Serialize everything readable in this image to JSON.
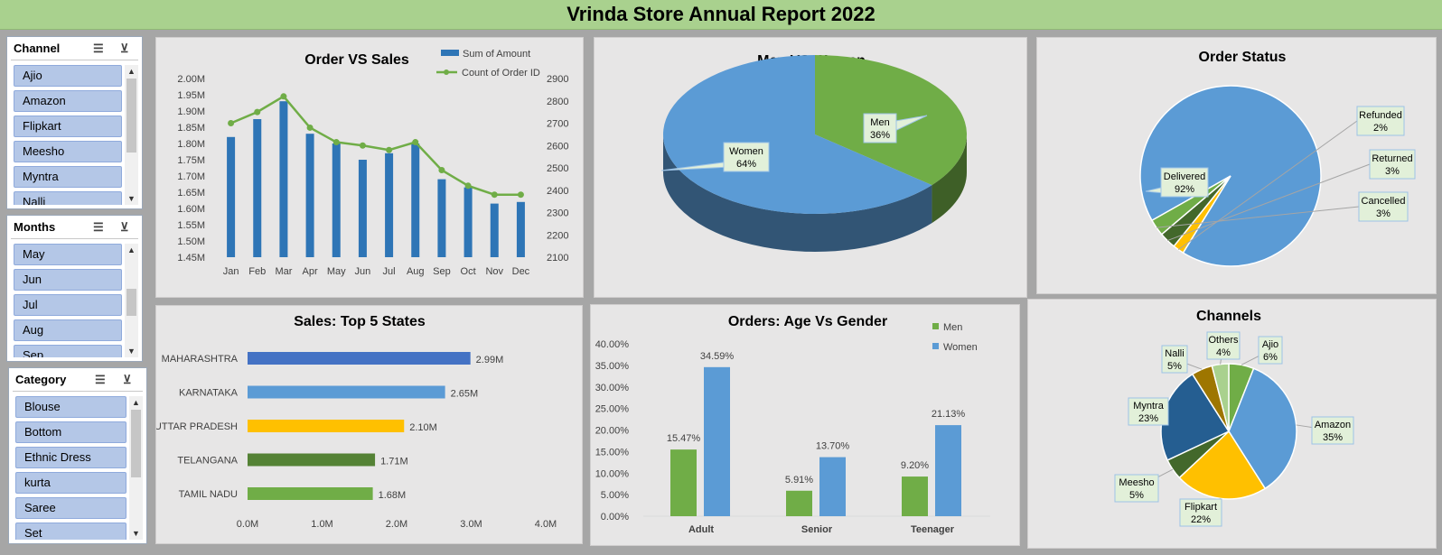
{
  "title": "Vrinda Store Annual Report 2022",
  "slicers": {
    "channel": {
      "label": "Channel",
      "items": [
        "Ajio",
        "Amazon",
        "Flipkart",
        "Meesho",
        "Myntra",
        "Nalli"
      ]
    },
    "months": {
      "label": "Months",
      "items": [
        "May",
        "Jun",
        "Jul",
        "Aug",
        "Sep"
      ]
    },
    "category": {
      "label": "Category",
      "items": [
        "Blouse",
        "Bottom",
        "Ethnic Dress",
        "kurta",
        "Saree",
        "Set"
      ]
    },
    "icons": {
      "multi_select": "multi-select-icon",
      "clear_filter": "clear-filter-icon",
      "scroll_up": "scroll-up-icon",
      "scroll_down": "scroll-down-icon"
    }
  },
  "chart_data": [
    {
      "id": "order_vs_sales",
      "type": "bar",
      "title": "Order VS Sales",
      "categories": [
        "Jan",
        "Feb",
        "Mar",
        "Apr",
        "May",
        "Jun",
        "Jul",
        "Aug",
        "Sep",
        "Oct",
        "Nov",
        "Dec"
      ],
      "series": [
        {
          "name": "Sum of Amount",
          "type": "bar",
          "axis": "left",
          "color": "#2e75b6",
          "values": [
            1.82,
            1.875,
            1.93,
            1.83,
            1.8,
            1.75,
            1.77,
            1.8,
            1.69,
            1.665,
            1.615,
            1.62
          ]
        },
        {
          "name": "Count of Order ID",
          "type": "line",
          "axis": "right",
          "color": "#70ad47",
          "values": [
            2700,
            2750,
            2820,
            2680,
            2615,
            2600,
            2580,
            2615,
            2490,
            2420,
            2380,
            2380
          ]
        }
      ],
      "y_left": {
        "range": [
          1.45,
          2.0
        ],
        "ticks": [
          "1.45M",
          "1.50M",
          "1.55M",
          "1.60M",
          "1.65M",
          "1.70M",
          "1.75M",
          "1.80M",
          "1.85M",
          "1.90M",
          "1.95M",
          "2.00M"
        ]
      },
      "y_right": {
        "range": [
          2100,
          2900
        ],
        "ticks": [
          "2100",
          "2200",
          "2300",
          "2400",
          "2500",
          "2600",
          "2700",
          "2800",
          "2900"
        ]
      },
      "legend": "top-right"
    },
    {
      "id": "men_vs_women",
      "type": "pie",
      "title": "Men VS Women",
      "slices": [
        {
          "name": "Men",
          "value": 36,
          "label": "36%",
          "color": "#70ad47"
        },
        {
          "name": "Women",
          "value": 64,
          "label": "64%",
          "color": "#5b9bd5"
        }
      ]
    },
    {
      "id": "order_status",
      "type": "pie",
      "title": "Order Status",
      "slices": [
        {
          "name": "Delivered",
          "value": 92,
          "label": "92%",
          "color": "#5b9bd5"
        },
        {
          "name": "Refunded",
          "value": 2,
          "label": "2%",
          "color": "#ffc000"
        },
        {
          "name": "Returned",
          "value": 3,
          "label": "3%",
          "color": "#43682b"
        },
        {
          "name": "Cancelled",
          "value": 3,
          "label": "3%",
          "color": "#70ad47"
        }
      ]
    },
    {
      "id": "top5_states",
      "type": "bar",
      "orientation": "horizontal",
      "title": "Sales: Top 5 States",
      "categories": [
        "MAHARASHTRA",
        "KARNATAKA",
        "UTTAR PRADESH",
        "TELANGANA",
        "TAMIL NADU"
      ],
      "values": [
        2.99,
        2.65,
        2.1,
        1.71,
        1.68
      ],
      "labels": [
        "2.99M",
        "2.65M",
        "2.10M",
        "1.71M",
        "1.68M"
      ],
      "colors": [
        "#4472c4",
        "#5b9bd5",
        "#ffc000",
        "#548235",
        "#70ad47"
      ],
      "x_ticks": [
        "0.0M",
        "1.0M",
        "2.0M",
        "3.0M",
        "4.0M"
      ],
      "xlim": [
        0,
        4
      ]
    },
    {
      "id": "age_vs_gender",
      "type": "bar",
      "title": "Orders: Age Vs Gender",
      "categories": [
        "Adult",
        "Senior",
        "Teenager"
      ],
      "series": [
        {
          "name": "Men",
          "color": "#70ad47",
          "values": [
            15.47,
            5.91,
            9.2
          ],
          "labels": [
            "15.47%",
            "5.91%",
            "9.20%"
          ]
        },
        {
          "name": "Women",
          "color": "#5b9bd5",
          "values": [
            34.59,
            13.7,
            21.13
          ],
          "labels": [
            "34.59%",
            "13.70%",
            "21.13%"
          ]
        }
      ],
      "y_ticks": [
        "0.00%",
        "5.00%",
        "10.00%",
        "15.00%",
        "20.00%",
        "25.00%",
        "30.00%",
        "35.00%",
        "40.00%"
      ],
      "ylim": [
        0,
        40
      ],
      "legend": "top-right"
    },
    {
      "id": "channels",
      "type": "pie",
      "title": "Channels",
      "slices": [
        {
          "name": "Ajio",
          "value": 6,
          "label": "6%",
          "color": "#70ad47"
        },
        {
          "name": "Amazon",
          "value": 35,
          "label": "35%",
          "color": "#5b9bd5"
        },
        {
          "name": "Flipkart",
          "value": 22,
          "label": "22%",
          "color": "#ffc000"
        },
        {
          "name": "Meesho",
          "value": 5,
          "label": "5%",
          "color": "#43682b"
        },
        {
          "name": "Myntra",
          "value": 23,
          "label": "23%",
          "color": "#255e91"
        },
        {
          "name": "Nalli",
          "value": 5,
          "label": "5%",
          "color": "#9e7600"
        },
        {
          "name": "Others",
          "value": 4,
          "label": "4%",
          "color": "#a9d18e"
        }
      ]
    }
  ]
}
